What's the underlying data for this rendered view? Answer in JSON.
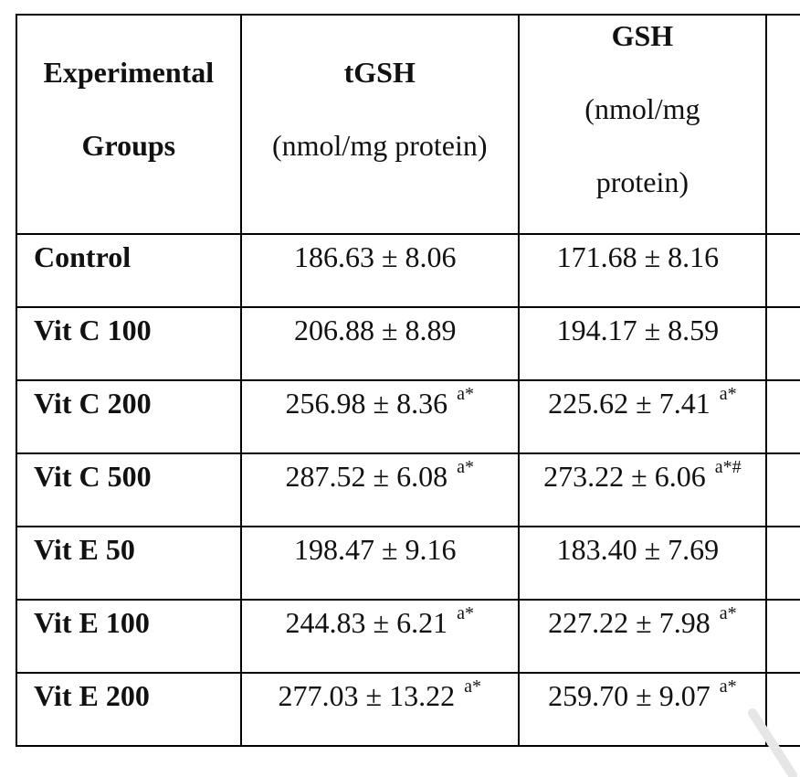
{
  "table": {
    "headers": {
      "groups": [
        "Experimental",
        "Groups"
      ],
      "tgsh": {
        "name": "tGSH",
        "unit": "(nmol/mg protein)"
      },
      "gsh": {
        "name": "GSH",
        "unit_line1": "(nmol/mg",
        "unit_line2": "protein)"
      }
    },
    "rows": [
      {
        "group": "Control",
        "tgsh": "186.63 ± 8.06",
        "tgsh_sup": "",
        "gsh": "171.68 ± 8.16",
        "gsh_sup": ""
      },
      {
        "group": "Vit C 100",
        "tgsh": "206.88 ± 8.89",
        "tgsh_sup": "",
        "gsh": "194.17 ± 8.59",
        "gsh_sup": ""
      },
      {
        "group": "Vit C 200",
        "tgsh": "256.98 ± 8.36",
        "tgsh_sup": "a*",
        "gsh": "225.62 ± 7.41",
        "gsh_sup": "a*"
      },
      {
        "group": "Vit C 500",
        "tgsh": "287.52 ± 6.08",
        "tgsh_sup": "a*",
        "gsh": "273.22 ± 6.06",
        "gsh_sup": "a*#"
      },
      {
        "group": "Vit E 50",
        "tgsh": "198.47 ± 9.16",
        "tgsh_sup": "",
        "gsh": "183.40 ± 7.69",
        "gsh_sup": ""
      },
      {
        "group": "Vit E 100",
        "tgsh": "244.83 ± 6.21",
        "tgsh_sup": "a*",
        "gsh": "227.22 ± 7.98",
        "gsh_sup": "a*"
      },
      {
        "group": "Vit E 200",
        "tgsh": "277.03 ± 13.22",
        "tgsh_sup": "a*",
        "gsh": "259.70 ± 9.07",
        "gsh_sup": "a*"
      }
    ]
  }
}
